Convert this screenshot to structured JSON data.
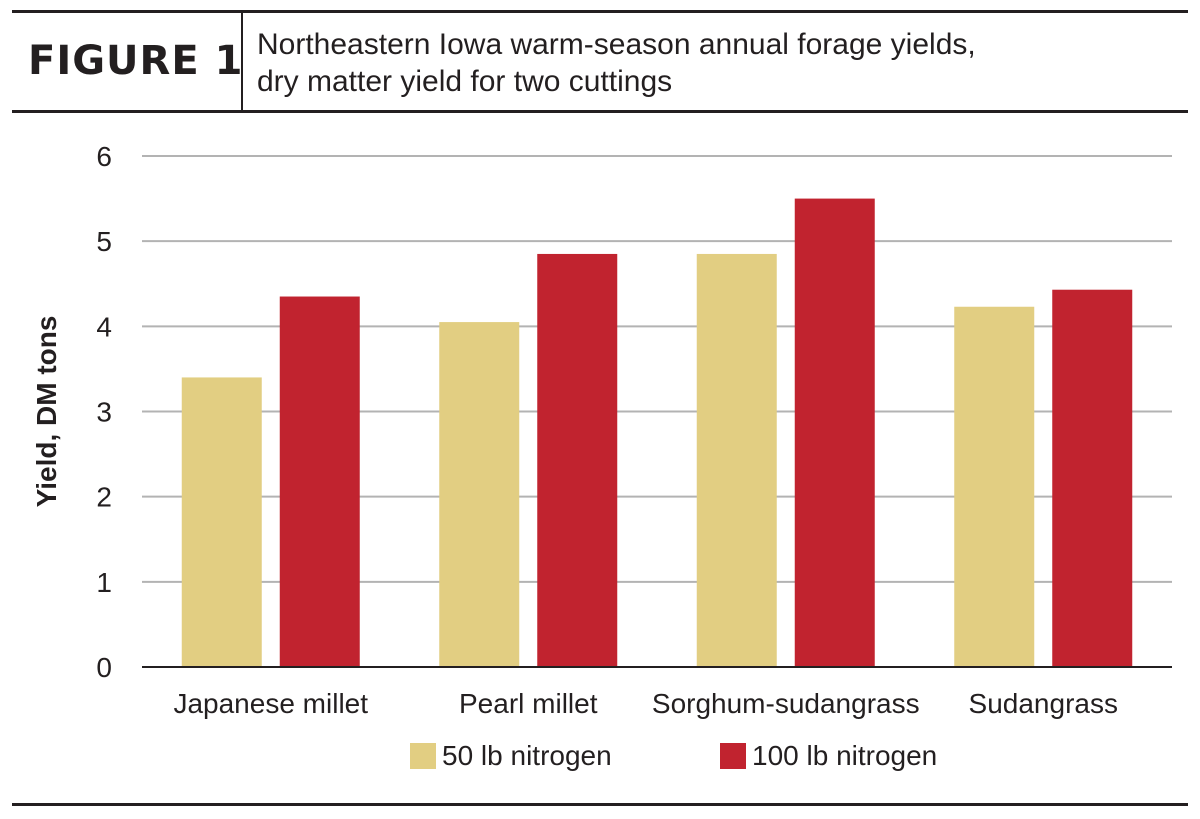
{
  "figure": {
    "label": "FIGURE 1",
    "title_line1": "Northeastern Iowa warm-season annual forage yields,",
    "title_line2": "dry matter yield for two cuttings"
  },
  "colors": {
    "series_50": "#e2ce82",
    "series_100": "#c1232f",
    "grid": "#b3b3b3",
    "axis": "#231f20"
  },
  "chart_data": {
    "type": "bar",
    "categories": [
      "Japanese millet",
      "Pearl millet",
      "Sorghum-sudangrass",
      "Sudangrass"
    ],
    "series": [
      {
        "name": "50 lb nitrogen",
        "values": [
          3.4,
          4.05,
          4.85,
          4.23
        ]
      },
      {
        "name": "100 lb nitrogen",
        "values": [
          4.35,
          4.85,
          5.5,
          4.43
        ]
      }
    ],
    "ylabel": "Yield, DM tons",
    "xlabel": "",
    "ylim": [
      0,
      6
    ],
    "yticks": [
      0,
      1,
      2,
      3,
      4,
      5,
      6
    ],
    "grid": true,
    "legend": "bottom-center"
  }
}
